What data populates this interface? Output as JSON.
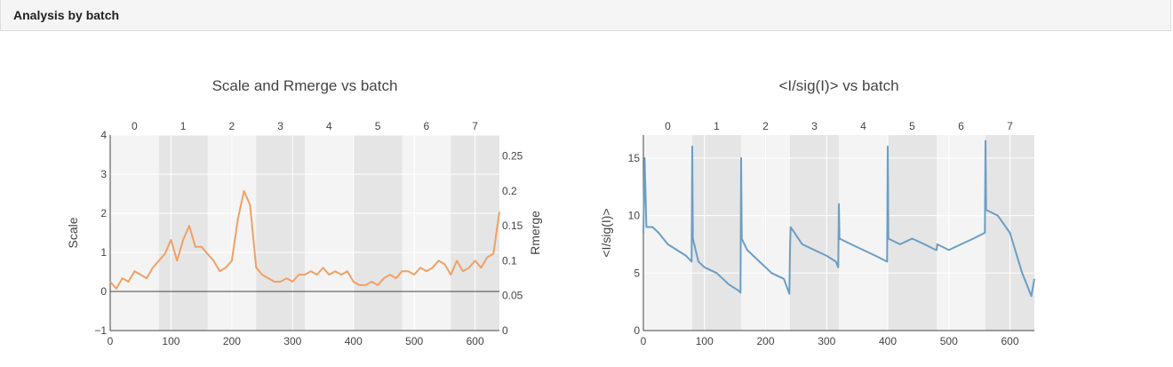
{
  "panel": {
    "title": "Analysis by batch"
  },
  "chart_data": [
    {
      "type": "line",
      "title": "Scale and Rmerge vs batch",
      "xlabel": "",
      "ylabel": "Scale",
      "y2label": "Rmerge",
      "xlim": [
        0,
        640
      ],
      "ylim": [
        -1,
        4
      ],
      "y2lim": [
        0,
        0.28
      ],
      "x_ticks": [
        0,
        100,
        200,
        300,
        400,
        500,
        600
      ],
      "y_ticks": [
        -1,
        0,
        1,
        2,
        3,
        4
      ],
      "y2_ticks": [
        0,
        0.05,
        0.1,
        0.15,
        0.2,
        0.25
      ],
      "batch_labels": [
        "0",
        "1",
        "2",
        "3",
        "4",
        "5",
        "6",
        "7"
      ],
      "batch_bounds": [
        0,
        80,
        160,
        240,
        320,
        400,
        480,
        560,
        640
      ],
      "grid": true,
      "series": [
        {
          "axis": "y2",
          "color": "#f0a066",
          "x": [
            0,
            10,
            20,
            30,
            40,
            50,
            60,
            70,
            80,
            90,
            100,
            110,
            120,
            130,
            140,
            150,
            160,
            170,
            180,
            190,
            200,
            210,
            220,
            230,
            240,
            250,
            260,
            270,
            280,
            290,
            300,
            310,
            320,
            330,
            340,
            350,
            360,
            370,
            380,
            390,
            400,
            410,
            420,
            430,
            440,
            450,
            460,
            470,
            480,
            490,
            500,
            510,
            520,
            530,
            540,
            550,
            560,
            570,
            580,
            590,
            600,
            610,
            620,
            630,
            640
          ],
          "values": [
            0.07,
            0.06,
            0.075,
            0.07,
            0.085,
            0.08,
            0.075,
            0.09,
            0.1,
            0.11,
            0.13,
            0.1,
            0.13,
            0.15,
            0.12,
            0.12,
            0.11,
            0.1,
            0.085,
            0.09,
            0.1,
            0.16,
            0.2,
            0.18,
            0.09,
            0.08,
            0.075,
            0.07,
            0.07,
            0.075,
            0.07,
            0.08,
            0.08,
            0.085,
            0.08,
            0.09,
            0.08,
            0.085,
            0.08,
            0.085,
            0.07,
            0.065,
            0.065,
            0.07,
            0.065,
            0.075,
            0.08,
            0.075,
            0.085,
            0.085,
            0.08,
            0.09,
            0.085,
            0.09,
            0.1,
            0.095,
            0.08,
            0.1,
            0.085,
            0.09,
            0.1,
            0.09,
            0.105,
            0.11,
            0.17
          ]
        }
      ]
    },
    {
      "type": "line",
      "title": "<I/sig(I)> vs batch",
      "xlabel": "",
      "ylabel": "<I/sig(I)>",
      "xlim": [
        0,
        640
      ],
      "ylim": [
        0,
        17
      ],
      "x_ticks": [
        0,
        100,
        200,
        300,
        400,
        500,
        600
      ],
      "y_ticks": [
        0,
        5,
        10,
        15
      ],
      "batch_labels": [
        "0",
        "1",
        "2",
        "3",
        "4",
        "5",
        "6",
        "7"
      ],
      "batch_bounds": [
        0,
        80,
        160,
        240,
        320,
        400,
        480,
        560,
        640
      ],
      "grid": true,
      "series": [
        {
          "axis": "y",
          "color": "#6a9ec5",
          "x": [
            0,
            2,
            5,
            15,
            25,
            40,
            55,
            70,
            79,
            80,
            81,
            90,
            100,
            120,
            140,
            155,
            159,
            160,
            161,
            170,
            190,
            210,
            230,
            239,
            240,
            241,
            260,
            280,
            300,
            315,
            319,
            320,
            321,
            340,
            360,
            380,
            399,
            400,
            401,
            420,
            440,
            460,
            479,
            480,
            481,
            500,
            520,
            540,
            559,
            560,
            561,
            580,
            600,
            620,
            635,
            640
          ],
          "values": [
            8.5,
            15,
            9,
            9,
            8.5,
            7.5,
            7,
            6.5,
            6,
            16,
            8,
            6,
            5.5,
            5,
            4,
            3.5,
            3.3,
            15,
            8,
            7,
            6,
            5,
            4.5,
            3.2,
            7,
            9,
            7.5,
            7,
            6.5,
            6,
            5.5,
            11,
            8,
            7.5,
            7,
            6.5,
            6,
            16,
            8,
            7.5,
            8,
            7.5,
            7,
            7,
            7.5,
            7,
            7.5,
            8,
            8.5,
            16.5,
            10.5,
            10,
            8.5,
            5,
            3,
            4.5
          ]
        }
      ]
    }
  ]
}
